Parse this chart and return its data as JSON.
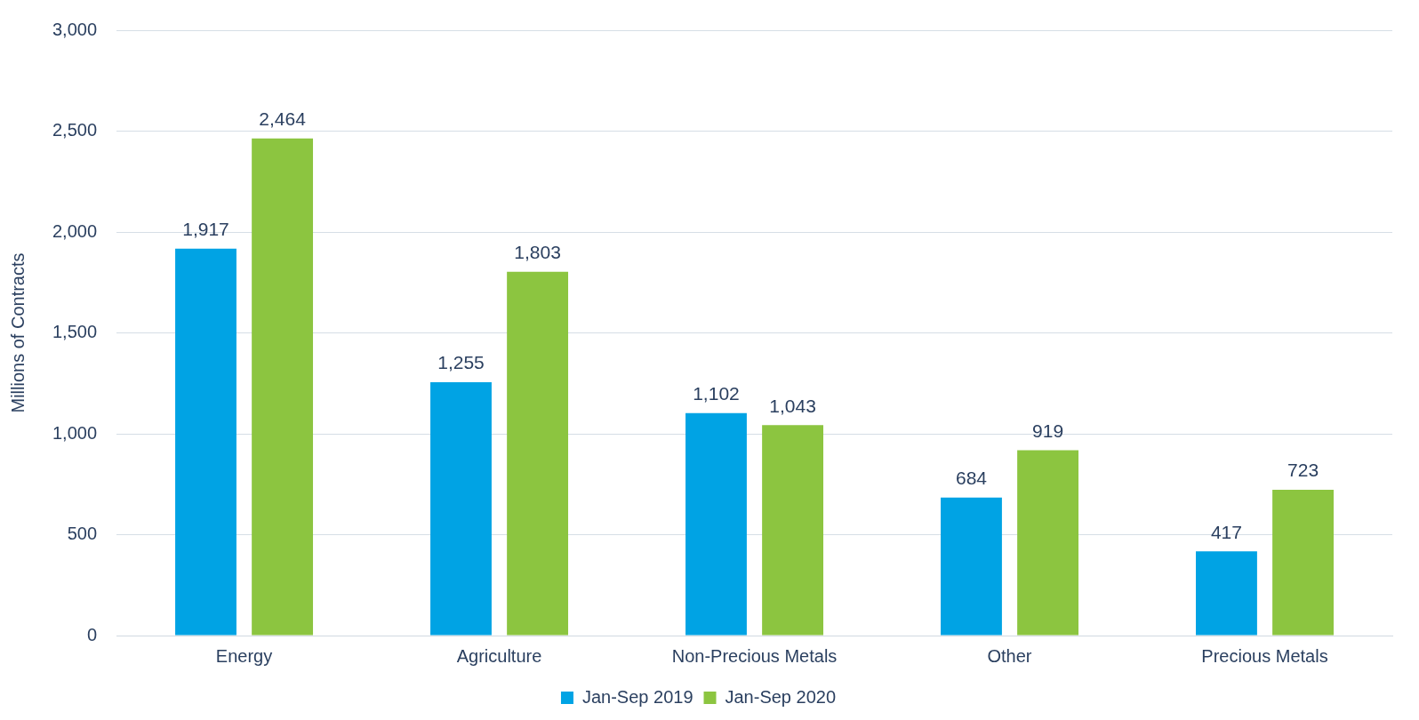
{
  "chart_data": {
    "type": "bar",
    "ylabel": "Millions of Contracts",
    "categories": [
      "Energy",
      "Agriculture",
      "Non-Precious Metals",
      "Other",
      "Precious Metals"
    ],
    "series": [
      {
        "name": "Jan-Sep 2019",
        "color": "#00a3e4",
        "values": [
          1917,
          1255,
          1102,
          684,
          417
        ],
        "value_labels": [
          "1,917",
          "1,255",
          "1,102",
          "684",
          "417"
        ]
      },
      {
        "name": "Jan-Sep 2020",
        "color": "#8cc540",
        "values": [
          2464,
          1803,
          1043,
          919,
          723
        ],
        "value_labels": [
          "2,464",
          "1,803",
          "1,043",
          "919",
          "723"
        ]
      }
    ],
    "ylim": [
      0,
      3000
    ],
    "yticks": [
      {
        "value": 0,
        "label": "0"
      },
      {
        "value": 500,
        "label": "500"
      },
      {
        "value": 1000,
        "label": "1,000"
      },
      {
        "value": 1500,
        "label": "1,500"
      },
      {
        "value": 2000,
        "label": "2,000"
      },
      {
        "value": 2500,
        "label": "2,500"
      },
      {
        "value": 3000,
        "label": "3,000"
      }
    ],
    "grid": "y",
    "legend": "bottom"
  }
}
